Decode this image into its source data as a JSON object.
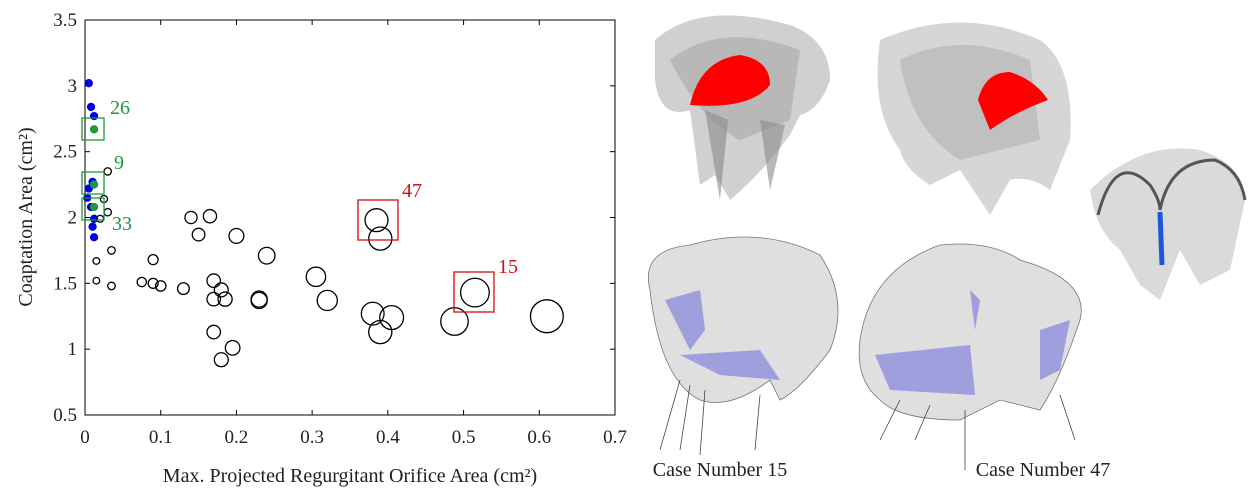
{
  "chart_data": {
    "type": "scatter",
    "xlabel": "Max. Projected Regurgitant Orifice Area (cm²)",
    "ylabel": "Coaptation Area (cm²)",
    "xlim": [
      0,
      0.7
    ],
    "xticks": [
      0,
      0.1,
      0.2,
      0.3,
      0.4,
      0.5,
      0.6,
      0.7
    ],
    "ylim": [
      0.5,
      3.5
    ],
    "yticks": [
      0.5,
      1,
      1.5,
      2,
      2.5,
      3,
      3.5
    ],
    "series": [
      {
        "color": "#0000e0",
        "filled": true,
        "x": [
          0.005,
          0.008,
          0.012,
          0.01,
          0.005,
          0.003,
          0.008,
          0.012,
          0.01,
          0.012
        ],
        "values": [
          3.02,
          2.84,
          2.77,
          2.27,
          2.22,
          2.15,
          2.08,
          1.99,
          1.93,
          1.85
        ]
      },
      {
        "color": "#1a9a3a",
        "filled": true,
        "x": [
          0.012,
          0.012,
          0.012
        ],
        "values": [
          2.67,
          2.25,
          2.08
        ]
      },
      {
        "color": "#000000",
        "filled": false,
        "x": [
          0.03,
          0.025,
          0.03,
          0.02,
          0.035,
          0.015,
          0.015,
          0.035,
          0.09,
          0.075,
          0.09,
          0.1,
          0.13,
          0.14,
          0.15,
          0.165,
          0.2,
          0.17,
          0.18,
          0.17,
          0.185,
          0.17,
          0.195,
          0.18,
          0.23,
          0.23,
          0.24,
          0.305,
          0.32,
          0.385,
          0.39,
          0.38,
          0.39,
          0.405,
          0.488,
          0.515,
          0.61
        ],
        "values": [
          2.35,
          2.14,
          2.04,
          1.99,
          1.75,
          1.67,
          1.52,
          1.48,
          1.68,
          1.51,
          1.5,
          1.48,
          1.46,
          2.0,
          1.87,
          2.01,
          1.86,
          1.52,
          1.45,
          1.38,
          1.38,
          1.13,
          1.01,
          0.92,
          1.38,
          1.37,
          1.71,
          1.55,
          1.37,
          1.98,
          1.84,
          1.27,
          1.13,
          1.24,
          1.21,
          1.43,
          1.25
        ]
      }
    ],
    "annotations": [
      {
        "text": "26",
        "color": "#1a9a3a"
      },
      {
        "text": "9",
        "color": "#1a9a3a"
      },
      {
        "text": "33",
        "color": "#1a9a3a"
      },
      {
        "text": "47",
        "color": "#d01010"
      },
      {
        "text": "15",
        "color": "#d01010"
      }
    ]
  },
  "images": [
    {
      "caption": "Case Number 15"
    },
    {
      "caption": "Case Number 47"
    }
  ]
}
